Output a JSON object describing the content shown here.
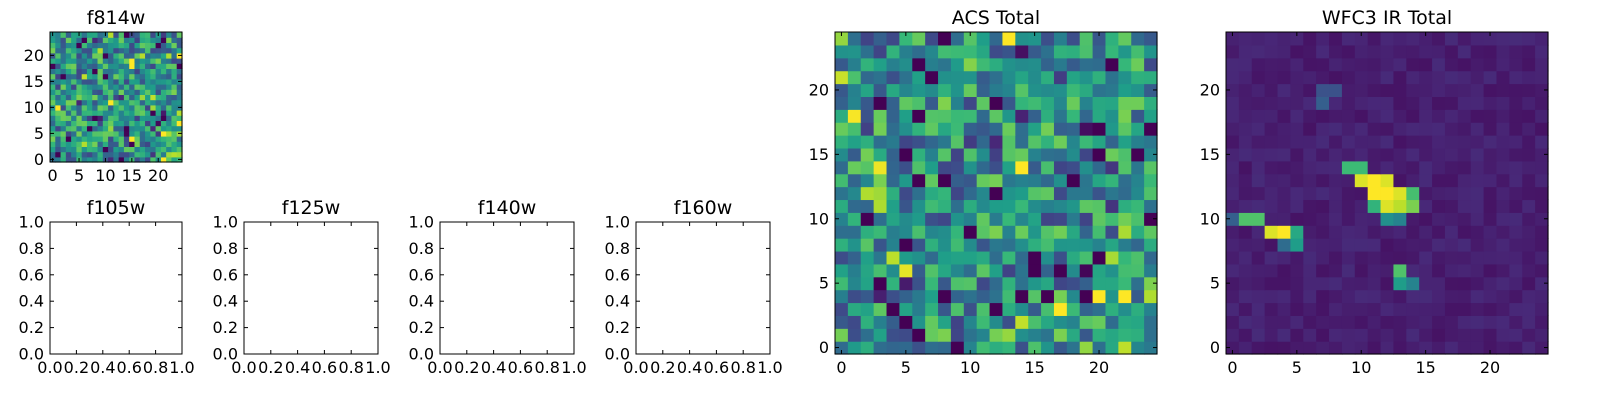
{
  "chart_data": [
    {
      "type": "heatmap",
      "title": "f814w",
      "grid": false,
      "colormap": "viridis",
      "shape": [
        25,
        25
      ],
      "xlim": [
        -0.5,
        24.5
      ],
      "ylim": [
        -0.5,
        24.5
      ],
      "xticks": [
        0,
        5,
        10,
        15,
        20
      ],
      "yticks": [
        0,
        5,
        10,
        15,
        20
      ],
      "pattern": "noise",
      "seed": 11
    },
    {
      "type": "scatter",
      "title": "f105w",
      "grid": false,
      "empty": true,
      "xlim": [
        0,
        1
      ],
      "ylim": [
        0,
        1
      ],
      "xticks": [
        "0.0",
        "0.2",
        "0.4",
        "0.6",
        "0.8",
        "1.0"
      ],
      "yticks": [
        "0.0",
        "0.2",
        "0.4",
        "0.6",
        "0.8",
        "1.0"
      ]
    },
    {
      "type": "scatter",
      "title": "f125w",
      "grid": false,
      "empty": true,
      "xlim": [
        0,
        1
      ],
      "ylim": [
        0,
        1
      ],
      "xticks": [
        "0.0",
        "0.2",
        "0.4",
        "0.6",
        "0.8",
        "1.0"
      ],
      "yticks": [
        "0.0",
        "0.2",
        "0.4",
        "0.6",
        "0.8",
        "1.0"
      ]
    },
    {
      "type": "scatter",
      "title": "f140w",
      "grid": false,
      "empty": true,
      "xlim": [
        0,
        1
      ],
      "ylim": [
        0,
        1
      ],
      "xticks": [
        "0.0",
        "0.2",
        "0.4",
        "0.6",
        "0.8",
        "1.0"
      ],
      "yticks": [
        "0.0",
        "0.2",
        "0.4",
        "0.6",
        "0.8",
        "1.0"
      ]
    },
    {
      "type": "scatter",
      "title": "f160w",
      "grid": false,
      "empty": true,
      "xlim": [
        0,
        1
      ],
      "ylim": [
        0,
        1
      ],
      "xticks": [
        "0.0",
        "0.2",
        "0.4",
        "0.6",
        "0.8",
        "1.0"
      ],
      "yticks": [
        "0.0",
        "0.2",
        "0.4",
        "0.6",
        "0.8",
        "1.0"
      ]
    },
    {
      "type": "heatmap",
      "title": "ACS Total",
      "grid": false,
      "colormap": "viridis",
      "shape": [
        25,
        25
      ],
      "xlim": [
        -0.5,
        24.5
      ],
      "ylim": [
        -0.5,
        24.5
      ],
      "xticks": [
        0,
        5,
        10,
        15,
        20
      ],
      "yticks": [
        0,
        5,
        10,
        15,
        20
      ],
      "pattern": "noise",
      "seed": 23
    },
    {
      "type": "heatmap",
      "title": "WFC3 IR Total",
      "grid": false,
      "colormap": "viridis",
      "shape": [
        25,
        25
      ],
      "xlim": [
        -0.5,
        24.5
      ],
      "ylim": [
        -0.5,
        24.5
      ],
      "xticks": [
        0,
        5,
        10,
        15,
        20
      ],
      "yticks": [
        0,
        5,
        10,
        15,
        20
      ],
      "pattern": "sources",
      "seed": 37,
      "background": 0.05,
      "sources": [
        {
          "x": 7,
          "y": 20,
          "value": 0.25
        },
        {
          "x": 8,
          "y": 20,
          "value": 0.25
        },
        {
          "x": 7,
          "y": 19,
          "value": 0.3
        },
        {
          "x": 9,
          "y": 14,
          "value": 0.68
        },
        {
          "x": 10,
          "y": 14,
          "value": 0.68
        },
        {
          "x": 10,
          "y": 13,
          "value": 0.95
        },
        {
          "x": 11,
          "y": 13,
          "value": 1.0
        },
        {
          "x": 12,
          "y": 13,
          "value": 0.95
        },
        {
          "x": 11,
          "y": 12,
          "value": 1.0
        },
        {
          "x": 12,
          "y": 12,
          "value": 1.0
        },
        {
          "x": 13,
          "y": 12,
          "value": 0.95
        },
        {
          "x": 12,
          "y": 11,
          "value": 0.95
        },
        {
          "x": 13,
          "y": 11,
          "value": 0.9
        },
        {
          "x": 14,
          "y": 12,
          "value": 0.7
        },
        {
          "x": 14,
          "y": 11,
          "value": 0.8
        },
        {
          "x": 11,
          "y": 11,
          "value": 0.65
        },
        {
          "x": 12,
          "y": 10,
          "value": 0.5
        },
        {
          "x": 13,
          "y": 10,
          "value": 0.45
        },
        {
          "x": 0,
          "y": 10,
          "value": 0.3
        },
        {
          "x": 1,
          "y": 10,
          "value": 0.72
        },
        {
          "x": 2,
          "y": 10,
          "value": 0.72
        },
        {
          "x": 3,
          "y": 9,
          "value": 0.95
        },
        {
          "x": 4,
          "y": 9,
          "value": 1.0
        },
        {
          "x": 5,
          "y": 9,
          "value": 0.6
        },
        {
          "x": 5,
          "y": 8,
          "value": 0.55
        },
        {
          "x": 4,
          "y": 8,
          "value": 0.35
        },
        {
          "x": 13,
          "y": 6,
          "value": 0.72
        },
        {
          "x": 13,
          "y": 5,
          "value": 0.55
        },
        {
          "x": 14,
          "y": 5,
          "value": 0.45
        }
      ]
    }
  ]
}
